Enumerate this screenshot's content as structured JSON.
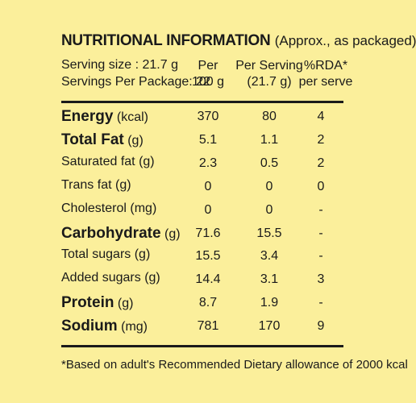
{
  "title_bold": "NUTRITIONAL INFORMATION",
  "title_note": "(Approx., as packaged)",
  "serving_size": "Serving size : 21.7 g",
  "servings_per_package": "Servings Per Package: 22",
  "headers": {
    "per100_line1": "Per",
    "per100_line2": "100 g",
    "serving_line1": "Per Serving",
    "serving_line2": "(21.7 g)",
    "rda_line1": "%RDA*",
    "rda_line2": "per serve"
  },
  "rows": [
    {
      "name": "Energy",
      "unit": "(kcal)",
      "bold": true,
      "per100": "370",
      "serving": "80",
      "rda": "4"
    },
    {
      "name": "Total Fat",
      "unit": "(g)",
      "bold": true,
      "per100": "5.1",
      "serving": "1.1",
      "rda": "2"
    },
    {
      "name": "Saturated fat",
      "unit": "(g)",
      "bold": false,
      "per100": "2.3",
      "serving": "0.5",
      "rda": "2"
    },
    {
      "name": "Trans fat",
      "unit": "(g)",
      "bold": false,
      "per100": "0",
      "serving": "0",
      "rda": "0"
    },
    {
      "name": "Cholesterol",
      "unit": "(mg)",
      "bold": false,
      "per100": "0",
      "serving": "0",
      "rda": "-"
    },
    {
      "name": "Carbohydrate",
      "unit": "(g)",
      "bold": true,
      "per100": "71.6",
      "serving": "15.5",
      "rda": "-"
    },
    {
      "name": "Total sugars",
      "unit": "(g)",
      "bold": false,
      "per100": "15.5",
      "serving": "3.4",
      "rda": "-"
    },
    {
      "name": "Added sugars",
      "unit": "(g)",
      "bold": false,
      "per100": "14.4",
      "serving": "3.1",
      "rda": "3"
    },
    {
      "name": "Protein",
      "unit": "(g)",
      "bold": true,
      "per100": "8.7",
      "serving": "1.9",
      "rda": "-"
    },
    {
      "name": "Sodium",
      "unit": "(mg)",
      "bold": true,
      "per100": "781",
      "serving": "170",
      "rda": "9"
    }
  ],
  "footnote": "*Based on adult's Recommended Dietary allowance of 2000 kcal"
}
